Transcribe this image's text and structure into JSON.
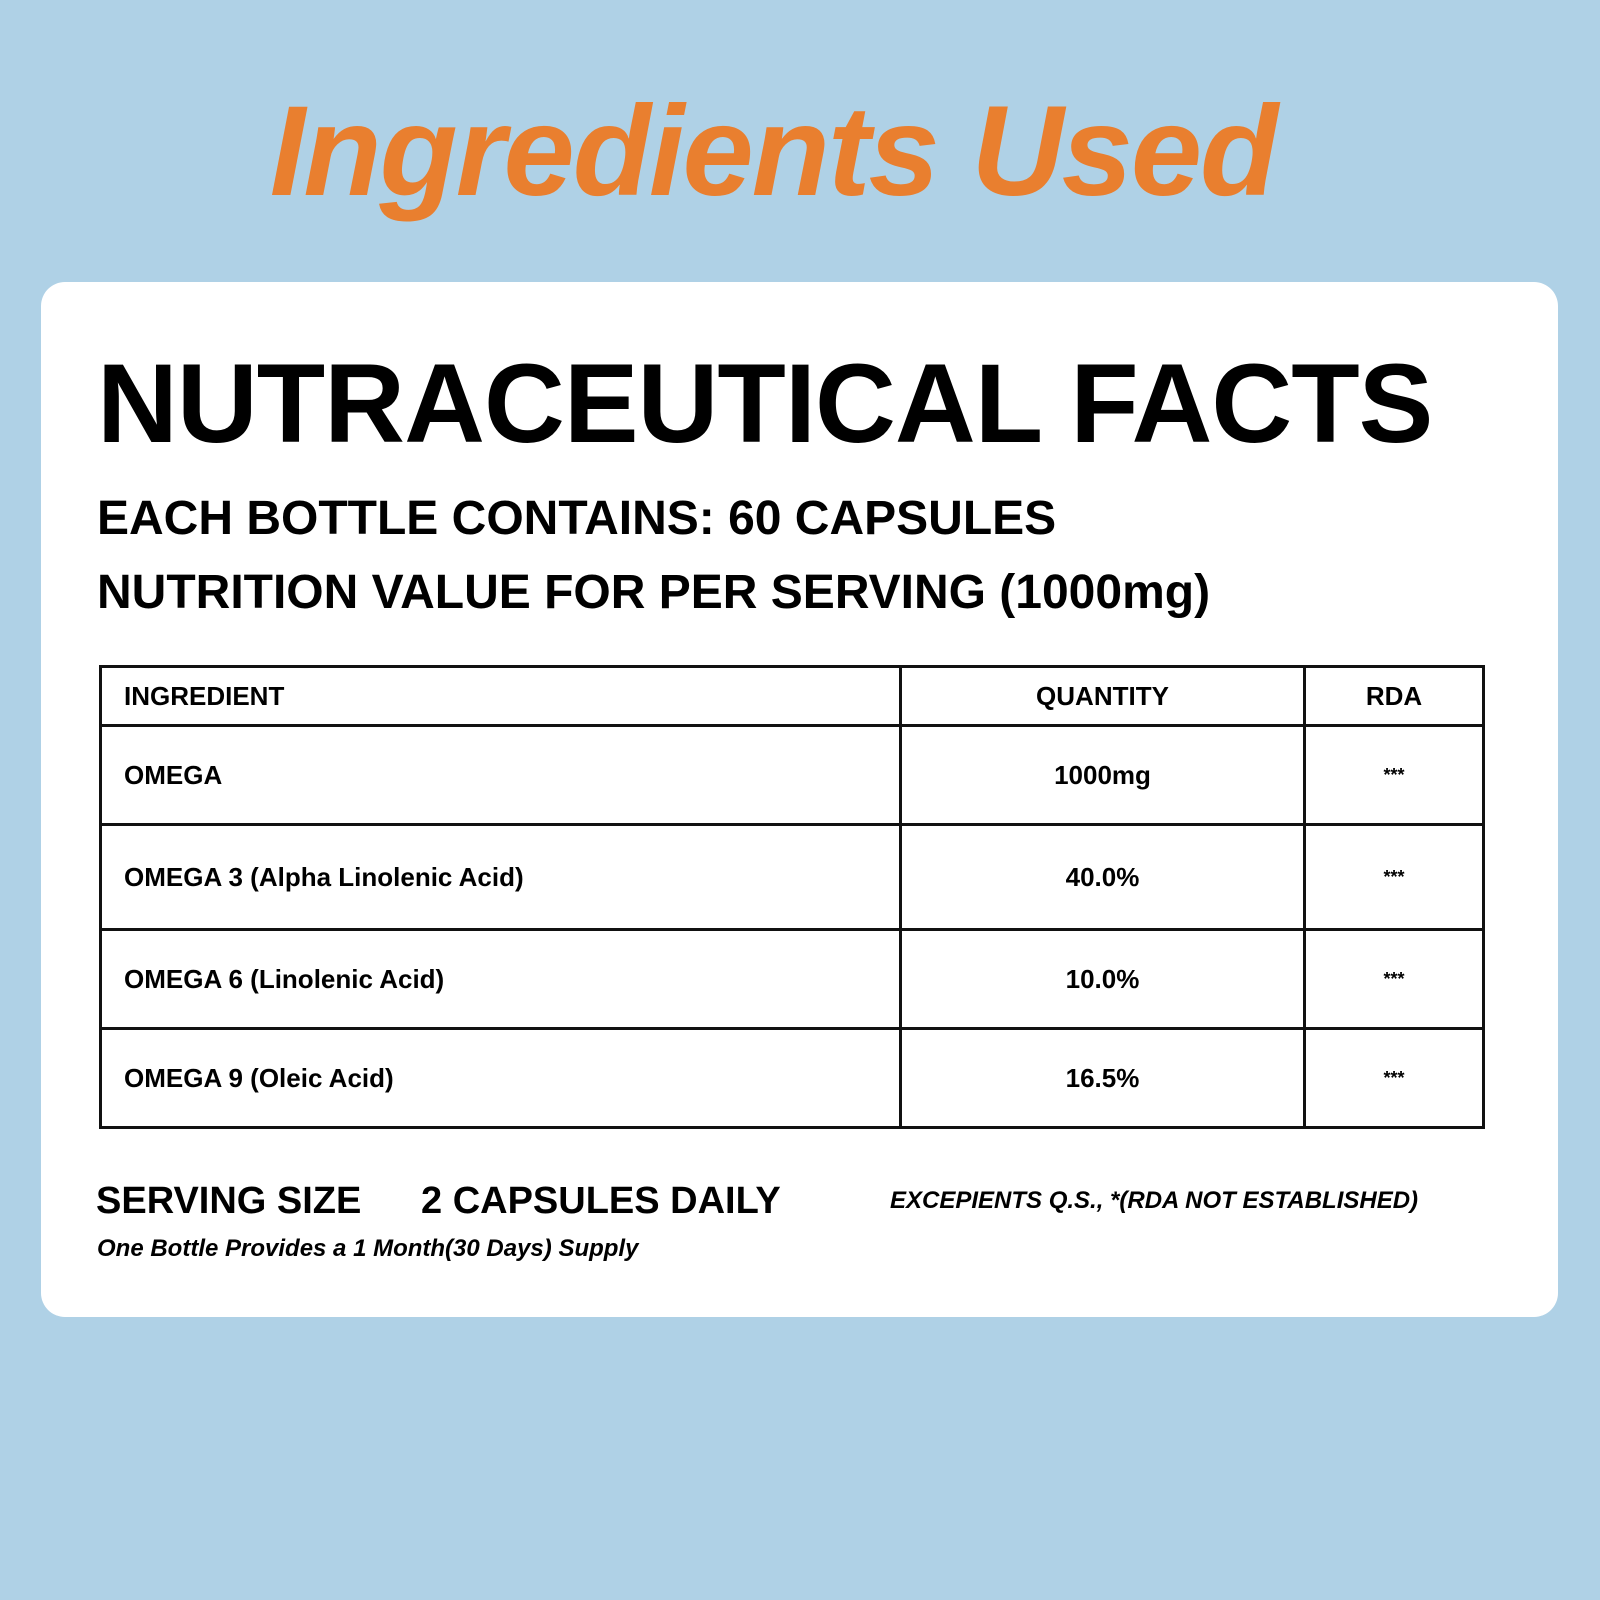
{
  "header": {
    "title": "Ingredients Used"
  },
  "card": {
    "title": "NUTRACEUTICAL FACTS",
    "bottle_contains": "EACH BOTTLE CONTAINS: 60 CAPSULES",
    "nutrition_value": "NUTRITION VALUE FOR PER SERVING (1000mg)",
    "table": {
      "headers": [
        "INGREDIENT",
        "QUANTITY",
        "RDA"
      ],
      "rows": [
        {
          "ingredient": "OMEGA",
          "quantity": "1000mg",
          "rda": "***"
        },
        {
          "ingredient": "OMEGA 3 (Alpha Linolenic Acid)",
          "quantity": "40.0%",
          "rda": "***"
        },
        {
          "ingredient": "OMEGA 6 (Linolenic Acid)",
          "quantity": "10.0%",
          "rda": "***"
        },
        {
          "ingredient": "OMEGA 9 (Oleic Acid)",
          "quantity": "16.5%",
          "rda": "***"
        }
      ]
    },
    "serving_size_label": "SERVING SIZE",
    "serving_size_value": "2 CAPSULES DAILY",
    "excipients_note": "EXCEPIENTS Q.S., *(RDA NOT ESTABLISHED)",
    "supply_note": "One Bottle Provides a 1 Month(30 Days) Supply"
  },
  "colors": {
    "background": "#afd1e6",
    "title": "#e97f2f",
    "card": "#ffffff",
    "text": "#000000"
  }
}
